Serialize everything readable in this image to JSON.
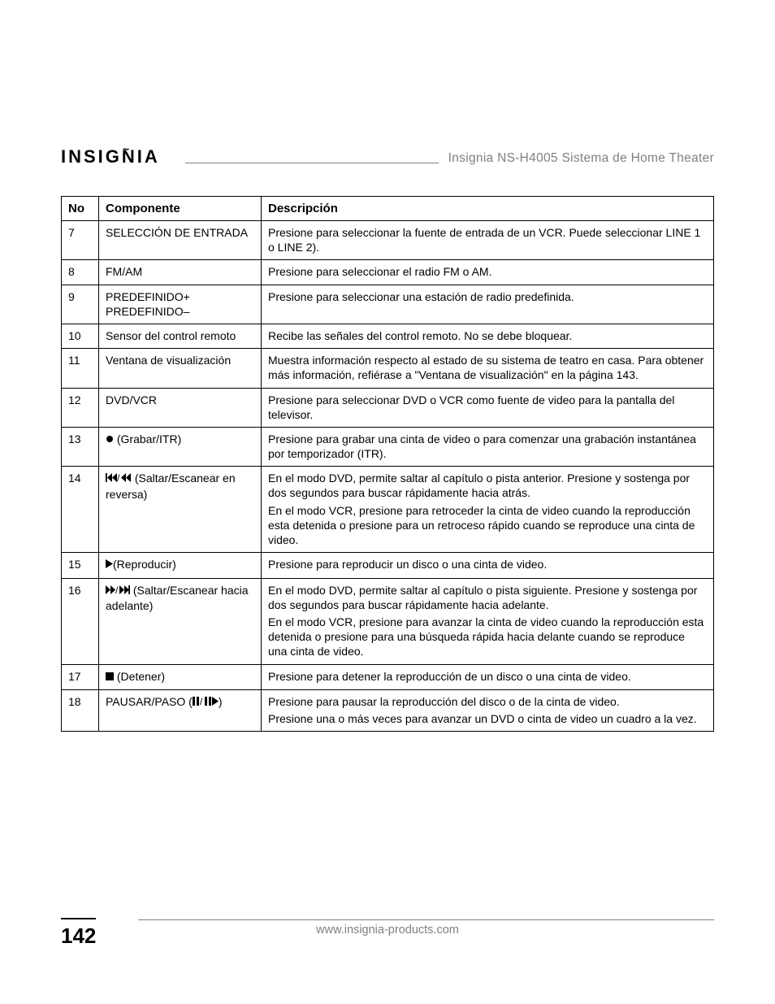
{
  "brand": "INSIGNIA",
  "docTitle": "Insignia NS-H4005 Sistema de Home Theater",
  "table": {
    "headers": {
      "no": "No",
      "component": "Componente",
      "description": "Descripción"
    },
    "rows": [
      {
        "no": "7",
        "comp": "SELECCIÓN DE ENTRADA",
        "desc": "Presione para seleccionar la fuente de entrada de un VCR. Puede seleccionar LINE 1 o LINE 2)."
      },
      {
        "no": "8",
        "comp": "FM/AM",
        "desc": "Presione para seleccionar el radio FM o AM."
      },
      {
        "no": "9",
        "comp": "PREDEFINIDO+\nPREDEFINIDO–",
        "desc": "Presione para seleccionar una estación de radio predefinida."
      },
      {
        "no": "10",
        "comp": "Sensor del control remoto",
        "desc": "Recibe las señales del control remoto. No se debe bloquear."
      },
      {
        "no": "11",
        "comp": "Ventana de visualización",
        "desc": "Muestra información respecto al estado de su sistema de teatro en casa. Para obtener más información, refiérase a \"Ventana de visualización\" en la página 143."
      },
      {
        "no": "12",
        "comp": "DVD/VCR",
        "desc": "Presione para seleccionar DVD o VCR como fuente de video para la pantalla del televisor."
      },
      {
        "no": "13",
        "compIcon": "record",
        "comp": " (Grabar/ITR)",
        "desc": "Presione para grabar una cinta de video o para comenzar una grabación instantánea por temporizador (ITR)."
      },
      {
        "no": "14",
        "compIcon": "skip-back",
        "comp": " (Saltar/Escanear en reversa)",
        "desc": "En el modo DVD, permite saltar al capítulo o pista anterior. Presione y sostenga por dos segundos para buscar rápidamente hacia atrás.",
        "desc2": "En el modo VCR, presione para retroceder la cinta de video cuando la reproducción esta detenida o presione para un retroceso rápido cuando se reproduce una cinta de video."
      },
      {
        "no": "15",
        "compIcon": "play",
        "comp": "(Reproducir)",
        "desc": "Presione para reproducir un disco o una cinta de video."
      },
      {
        "no": "16",
        "compIcon": "skip-fwd",
        "comp": " (Saltar/Escanear hacia adelante)",
        "desc": "En el modo DVD, permite saltar al capítulo o pista siguiente. Presione y sostenga por dos segundos para buscar rápidamente hacia adelante.",
        "desc2": "En el modo VCR, presione para avanzar la cinta de video cuando la reproducción esta detenida o presione para una búsqueda rápida hacia delante cuando se reproduce una cinta de video."
      },
      {
        "no": "17",
        "compIcon": "stop",
        "comp": " (Detener)",
        "desc": "Presione para detener la reproducción de un disco o una cinta de video."
      },
      {
        "no": "18",
        "comp": "PAUSAR/PASO (",
        "compIcon": "pause-step",
        "compAfter": ")",
        "desc": "Presione para pausar la reproducción del disco o de la cinta de video.",
        "desc2": "Presione una o más veces para avanzar un DVD o cinta de video un cuadro a la vez."
      }
    ]
  },
  "pageNumber": "142",
  "footerUrl": "www.insignia-products.com",
  "style": {
    "bodyBg": "#ffffff",
    "textColor": "#000000",
    "mutedColor": "#808080",
    "borderColor": "#000000",
    "tableFontSize": 14,
    "headerFontSize": 15,
    "logoFontSize": 22,
    "pageNumSize": 26
  }
}
